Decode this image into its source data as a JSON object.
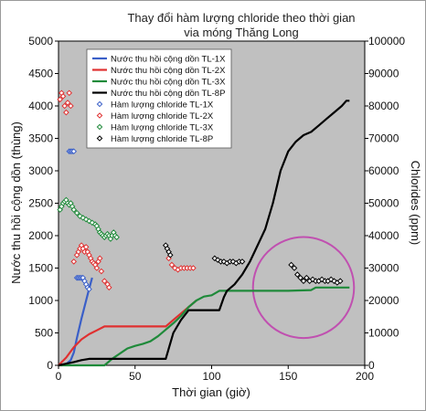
{
  "chart_data": {
    "type": "line",
    "title": "Thay đổi hàm lượng chloride theo thời gian",
    "subtitle": "via móng Thăng Long",
    "xlabel": "Thời gian (giờ)",
    "ylabel_left": "Nước thu hồi cộng dồn (thùng)",
    "ylabel_right": "Chlorides (ppm)",
    "xlim": [
      0,
      200
    ],
    "ylim_left": [
      0,
      5000
    ],
    "ylim_right": [
      0,
      100000
    ],
    "x_ticks": [
      "0",
      "50",
      "100",
      "150",
      "200"
    ],
    "y_left_ticks": [
      "0",
      "500",
      "1000",
      "1500",
      "2000",
      "2500",
      "3000",
      "3500",
      "4000",
      "4500",
      "5000"
    ],
    "y_right_ticks": [
      "0",
      "10000",
      "20000",
      "30000",
      "40000",
      "50000",
      "60000",
      "70000",
      "80000",
      "90000",
      "100000"
    ],
    "grid": false,
    "background": "#c0c0c0",
    "legend_position": "top-left",
    "lines": [
      {
        "name": "Nước thu hồi cộng dồn TL-1X",
        "color": "#3a5fc8",
        "axis": "left",
        "x": [
          0,
          5,
          8,
          10,
          12,
          15,
          18,
          20,
          22
        ],
        "y": [
          0,
          20,
          80,
          200,
          420,
          720,
          1000,
          1180,
          1350
        ]
      },
      {
        "name": "Nước thu hồi cộng dồn TL-2X",
        "color": "#e03030",
        "axis": "left",
        "x": [
          0,
          5,
          10,
          15,
          20,
          25,
          30,
          35,
          70,
          75,
          80,
          85,
          90
        ],
        "y": [
          0,
          120,
          280,
          400,
          480,
          540,
          600,
          600,
          600,
          700,
          800,
          900,
          1000
        ]
      },
      {
        "name": "Nước thu hồi cộng dồn TL-3X",
        "color": "#1f8a3a",
        "axis": "left",
        "x": [
          0,
          30,
          35,
          40,
          45,
          50,
          55,
          60,
          65,
          70,
          75,
          80,
          85,
          90,
          95,
          100,
          105,
          110,
          150,
          165,
          168,
          170,
          185,
          190
        ],
        "y": [
          0,
          0,
          100,
          180,
          260,
          300,
          330,
          370,
          450,
          550,
          650,
          760,
          900,
          1000,
          1060,
          1080,
          1150,
          1150,
          1150,
          1160,
          1200,
          1200,
          1200,
          1200
        ]
      },
      {
        "name": "Nước thu hồi cộng dồn TL-8P",
        "color": "#000000",
        "axis": "left",
        "x": [
          0,
          10,
          15,
          20,
          65,
          70,
          75,
          80,
          85,
          90,
          100,
          105,
          108,
          110,
          115,
          120,
          125,
          130,
          135,
          140,
          145,
          150,
          155,
          160,
          165,
          170,
          175,
          180,
          185,
          188,
          190
        ],
        "y": [
          0,
          50,
          80,
          100,
          100,
          100,
          500,
          700,
          850,
          850,
          850,
          850,
          1050,
          1150,
          1250,
          1400,
          1600,
          1850,
          2100,
          2500,
          3000,
          3300,
          3450,
          3550,
          3600,
          3700,
          3800,
          3900,
          4000,
          4080,
          4080
        ]
      }
    ],
    "scatter": [
      {
        "name": "Hàm lượng chloride TL-1X",
        "color": "#3a5fc8",
        "axis": "right",
        "x": [
          7,
          8,
          9,
          10,
          12,
          13,
          14,
          15,
          16,
          17,
          18,
          19,
          20
        ],
        "y": [
          66000,
          66000,
          66000,
          66000,
          27000,
          27000,
          27000,
          27000,
          27000,
          26000,
          25000,
          24000,
          23500
        ]
      },
      {
        "name": "Hàm lượng chloride TL-2X",
        "color": "#e03030",
        "axis": "right",
        "x": [
          1,
          2,
          3,
          4,
          5,
          6,
          7,
          8,
          10,
          12,
          13,
          14,
          15,
          16,
          17,
          18,
          19,
          20,
          21,
          22,
          23,
          24,
          25,
          26,
          27,
          28,
          30,
          32,
          33,
          72,
          74,
          76,
          78,
          80,
          82,
          84,
          86,
          88
        ],
        "y": [
          82000,
          84000,
          83000,
          80000,
          78000,
          81000,
          84000,
          80000,
          32000,
          34000,
          35000,
          36000,
          37000,
          36000,
          35000,
          36500,
          35000,
          34000,
          33000,
          32000,
          31500,
          31000,
          30000,
          32000,
          33000,
          29000,
          26000,
          25000,
          24000,
          33000,
          31000,
          30000,
          29500,
          30000,
          30000,
          30000,
          30000,
          30000
        ]
      },
      {
        "name": "Hàm lượng chloride TL-3X",
        "color": "#1f8a3a",
        "axis": "right",
        "x": [
          1,
          2,
          3,
          4,
          5,
          6,
          7,
          8,
          9,
          10,
          12,
          14,
          16,
          18,
          20,
          22,
          24,
          25,
          26,
          27,
          28,
          29,
          30,
          31,
          32,
          33,
          34,
          35,
          36,
          37,
          38
        ],
        "y": [
          48000,
          49000,
          50000,
          50500,
          51000,
          50000,
          49500,
          50000,
          49000,
          48000,
          47000,
          46000,
          45500,
          45000,
          44500,
          44000,
          43500,
          43000,
          42000,
          41000,
          40500,
          40000,
          39500,
          40000,
          40500,
          40000,
          39000,
          40000,
          41000,
          40000,
          39500
        ]
      },
      {
        "name": "Hàm lượng chloride TL-8P",
        "color": "#000000",
        "axis": "right",
        "x": [
          70,
          71,
          72,
          73,
          102,
          104,
          106,
          108,
          110,
          112,
          114,
          116,
          118,
          120,
          152,
          154,
          156,
          158,
          160,
          162,
          164,
          166,
          168,
          170,
          172,
          174,
          176,
          178,
          180,
          182,
          184
        ],
        "y": [
          37000,
          36000,
          35000,
          34000,
          33000,
          32500,
          32000,
          32000,
          31500,
          32000,
          32000,
          31500,
          32000,
          32000,
          31000,
          30000,
          28000,
          27000,
          26000,
          27000,
          26000,
          26500,
          26000,
          26000,
          26500,
          26000,
          26000,
          26500,
          26000,
          25500,
          26000
        ]
      }
    ],
    "annotation": {
      "shape": "circle",
      "color": "#c050b0",
      "cx": 160,
      "cy_left": 1200,
      "rx_units": 33
    }
  }
}
